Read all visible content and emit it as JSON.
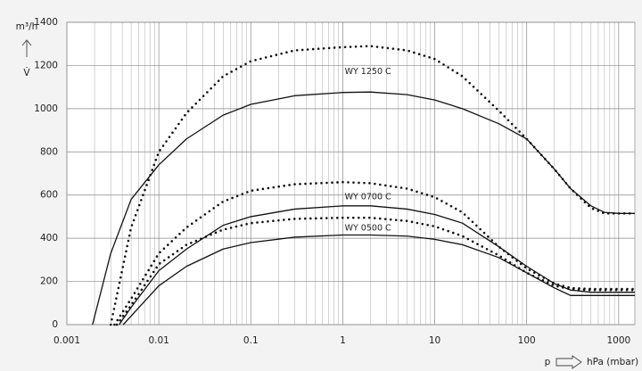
{
  "chart_data": {
    "type": "line",
    "y_unit": "m³/h",
    "y_symbol": "V̇",
    "x_symbol": "p",
    "x_unit": "hPa (mbar)",
    "xscale": "log",
    "xlim": [
      0.001,
      1500
    ],
    "ylim": [
      0,
      1400
    ],
    "xticks": [
      0.001,
      0.01,
      0.1,
      1,
      10,
      100,
      1000
    ],
    "xminorticks": [
      0.002,
      0.003,
      0.004,
      0.005,
      0.006,
      0.007,
      0.008,
      0.009,
      0.02,
      0.03,
      0.04,
      0.05,
      0.06,
      0.07,
      0.08,
      0.09,
      0.2,
      0.3,
      0.4,
      0.5,
      0.6,
      0.7,
      0.8,
      0.9,
      2,
      3,
      4,
      5,
      6,
      7,
      8,
      9,
      20,
      30,
      40,
      50,
      60,
      70,
      80,
      90,
      200,
      300,
      400,
      500,
      600,
      700,
      800,
      900
    ],
    "yticks": [
      0,
      200,
      400,
      600,
      800,
      1000,
      1200,
      1400
    ],
    "grid": true,
    "series": [
      {
        "color": "#111111",
        "dash": "solid",
        "x": [
          0.0019,
          0.003,
          0.005,
          0.01,
          0.02,
          0.05,
          0.1,
          0.3,
          1,
          2,
          5,
          10,
          20,
          50,
          100,
          200,
          300,
          500,
          700,
          1000,
          1500
        ],
        "values": [
          0,
          330,
          580,
          740,
          860,
          970,
          1020,
          1060,
          1075,
          1077,
          1065,
          1040,
          1000,
          930,
          860,
          720,
          630,
          550,
          520,
          515,
          515
        ]
      },
      {
        "color": "#111111",
        "dash": "dotted",
        "x": [
          0.003,
          0.005,
          0.01,
          0.02,
          0.05,
          0.1,
          0.3,
          1,
          2,
          5,
          10,
          20,
          50,
          100,
          200,
          300,
          500,
          700,
          1000,
          1500
        ],
        "values": [
          0,
          450,
          800,
          980,
          1150,
          1220,
          1270,
          1285,
          1290,
          1270,
          1230,
          1150,
          990,
          860,
          720,
          630,
          540,
          515,
          515,
          515
        ]
      },
      {
        "color": "#111111",
        "dash": "solid",
        "x": [
          0.0037,
          0.005,
          0.01,
          0.02,
          0.05,
          0.1,
          0.3,
          1,
          2,
          5,
          10,
          20,
          50,
          100,
          200,
          300,
          500,
          1500
        ],
        "values": [
          0,
          80,
          250,
          350,
          460,
          500,
          535,
          550,
          550,
          535,
          510,
          470,
          360,
          270,
          190,
          160,
          150,
          150
        ]
      },
      {
        "color": "#111111",
        "dash": "dotted",
        "x": [
          0.0033,
          0.005,
          0.01,
          0.02,
          0.05,
          0.1,
          0.3,
          1,
          2,
          5,
          10,
          20,
          50,
          100,
          200,
          300,
          500,
          1500
        ],
        "values": [
          0,
          120,
          330,
          450,
          570,
          620,
          650,
          660,
          655,
          630,
          590,
          520,
          360,
          260,
          190,
          170,
          165,
          165
        ]
      },
      {
        "color": "#111111",
        "dash": "solid",
        "x": [
          0.0041,
          0.005,
          0.01,
          0.02,
          0.05,
          0.1,
          0.3,
          1,
          2,
          5,
          10,
          20,
          50,
          100,
          200,
          300,
          1500
        ],
        "values": [
          0,
          40,
          180,
          270,
          350,
          380,
          405,
          415,
          415,
          410,
          395,
          370,
          310,
          240,
          170,
          135,
          135
        ]
      },
      {
        "color": "#111111",
        "dash": "dotted",
        "x": [
          0.0035,
          0.005,
          0.01,
          0.02,
          0.05,
          0.1,
          0.3,
          1,
          2,
          5,
          10,
          20,
          50,
          100,
          200,
          300,
          500,
          1500
        ],
        "values": [
          0,
          90,
          280,
          370,
          440,
          470,
          490,
          495,
          495,
          480,
          455,
          410,
          320,
          240,
          180,
          165,
          160,
          160
        ]
      }
    ],
    "annotations": [
      {
        "text": "WY 1250 C",
        "x": 1.05,
        "y": 1170
      },
      {
        "text": "WY 0700 C",
        "x": 1.05,
        "y": 590
      },
      {
        "text": "WY 0500 C",
        "x": 1.05,
        "y": 445
      }
    ]
  }
}
